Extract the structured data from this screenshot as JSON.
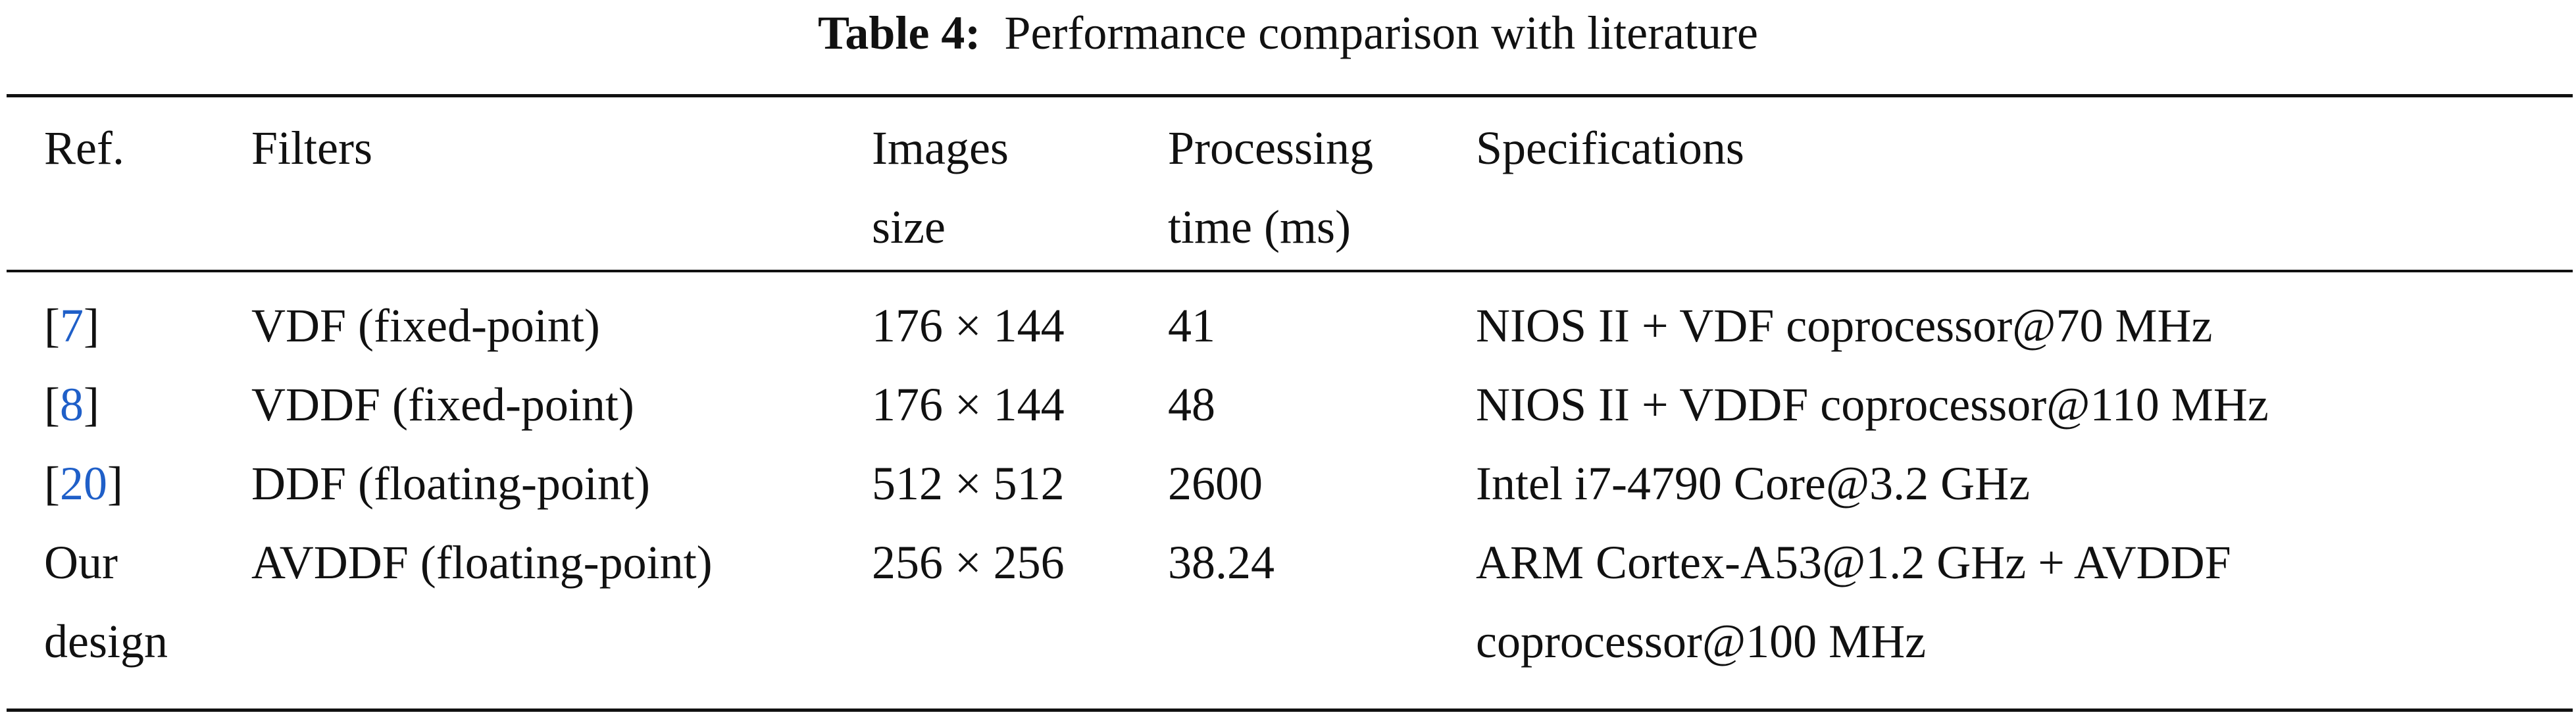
{
  "caption": {
    "label": "Table 4:",
    "text": "Performance comparison with literature"
  },
  "table": {
    "headers": [
      {
        "lines": [
          "Ref.",
          ""
        ]
      },
      {
        "lines": [
          "Filters",
          ""
        ]
      },
      {
        "lines": [
          "Images",
          "size"
        ]
      },
      {
        "lines": [
          "Processing",
          "time (ms)"
        ]
      },
      {
        "lines": [
          "Specifications",
          ""
        ]
      }
    ],
    "rows": [
      {
        "ref_open": "[",
        "ref": "7",
        "ref_close": "]",
        "filter": "VDF (fixed-point)",
        "size": "176 × 144",
        "time": "41",
        "spec": [
          "NIOS II + VDF coprocessor@70 MHz"
        ]
      },
      {
        "ref_open": "[",
        "ref": "8",
        "ref_close": "]",
        "filter": "VDDF (fixed-point)",
        "size": "176 × 144",
        "time": "48",
        "spec": [
          "NIOS II + VDDF coprocessor@110 MHz"
        ]
      },
      {
        "ref_open": "[",
        "ref": "20",
        "ref_close": "]",
        "filter": "DDF (floating-point)",
        "size": "512 × 512",
        "time": "2600",
        "spec": [
          "Intel i7-4790 Core@3.2 GHz"
        ]
      },
      {
        "ref_lines": [
          "Our",
          "design"
        ],
        "filter": "AVDDF (floating-point)",
        "size": "256 × 256",
        "time": "38.24",
        "spec": [
          "ARM Cortex-A53@1.2 GHz + AVDDF",
          "coprocessor@100 MHz"
        ]
      }
    ]
  },
  "colors": {
    "link": "#1f5fc8",
    "text": "#111111"
  }
}
